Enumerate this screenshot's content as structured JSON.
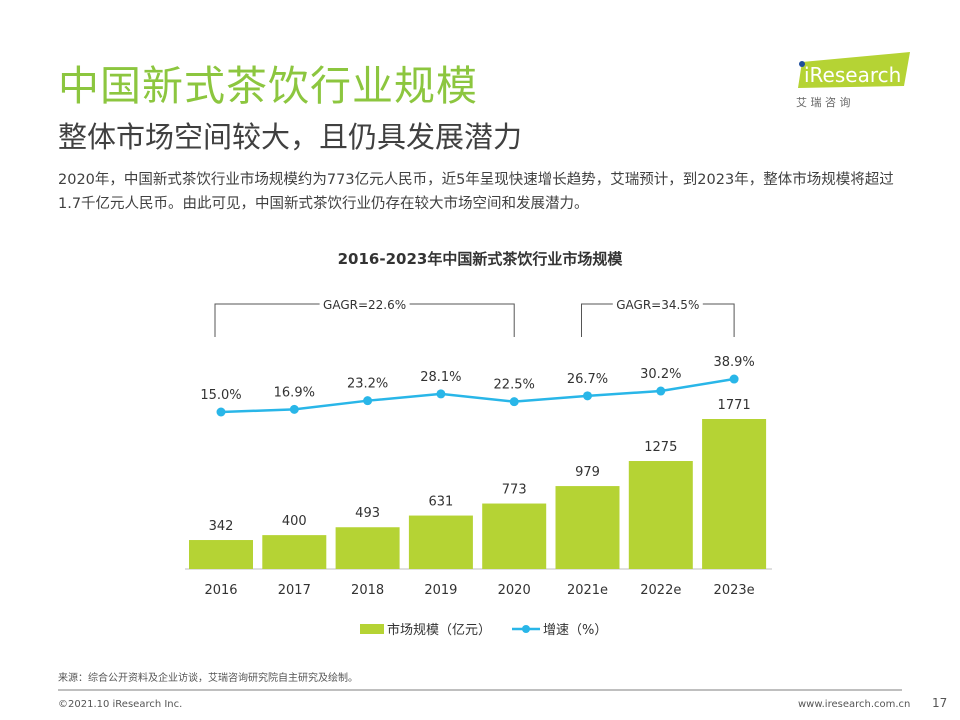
{
  "header": {
    "title": "中国新式茶饮行业规模",
    "subtitle": "整体市场空间较大，且仍具发展潜力",
    "description": "2020年，中国新式茶饮行业市场规模约为773亿元人民币，近5年呈现快速增长趋势，艾瑞预计，到2023年，整体市场规模将超过1.7千亿元人民币。由此可见，中国新式茶饮行业仍存在较大市场空间和发展潜力。"
  },
  "logo": {
    "brand": "iResearch",
    "cn": "艾 瑞 咨 询"
  },
  "chart_data": {
    "type": "bar+line",
    "title": "2016-2023年中国新式茶饮行业市场规模",
    "categories": [
      "2016",
      "2017",
      "2018",
      "2019",
      "2020",
      "2021e",
      "2022e",
      "2023e"
    ],
    "series": [
      {
        "name": "市场规模（亿元）",
        "type": "bar",
        "color": "#b5d334",
        "values": [
          342,
          400,
          493,
          631,
          773,
          979,
          1275,
          1771
        ],
        "labels": [
          "342",
          "400",
          "493",
          "631",
          "773",
          "979",
          "1275",
          "1771"
        ]
      },
      {
        "name": "增速（%）",
        "type": "line",
        "color": "#29b6e8",
        "values": [
          15.0,
          16.9,
          23.2,
          28.1,
          22.5,
          26.7,
          30.2,
          38.9
        ],
        "labels": [
          "15.0%",
          "16.9%",
          "23.2%",
          "28.1%",
          "22.5%",
          "26.7%",
          "30.2%",
          "38.9%"
        ]
      }
    ],
    "annotations": [
      {
        "text": "GAGR=22.6%",
        "from": "2016",
        "to": "2020"
      },
      {
        "text": "GAGR=34.5%",
        "from": "2021e",
        "to": "2023e"
      }
    ]
  },
  "footer": {
    "source": "来源：综合公开资料及企业访谈，艾瑞咨询研究院自主研究及绘制。",
    "copyright": "©2021.10 iResearch Inc.",
    "site": "www.iresearch.com.cn",
    "page": "17"
  }
}
